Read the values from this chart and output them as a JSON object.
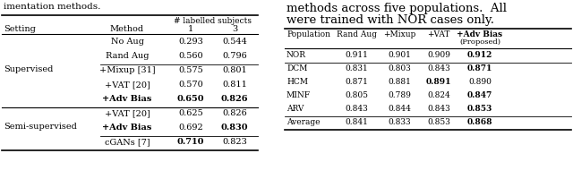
{
  "left_table": {
    "top_text": "imentation methods.",
    "rows": [
      {
        "setting": "",
        "method": "No Aug",
        "bold_method": false,
        "v1": "0.293",
        "v2": "0.544",
        "bold_v1": false,
        "bold_v2": false,
        "hline_before": false,
        "setting_label": ""
      },
      {
        "setting": "",
        "method": "Rand Aug",
        "bold_method": false,
        "v1": "0.560",
        "v2": "0.796",
        "bold_v1": false,
        "bold_v2": false,
        "hline_before": false,
        "setting_label": ""
      },
      {
        "setting": "",
        "method": "+Mixup [31]",
        "bold_method": false,
        "v1": "0.575",
        "v2": "0.801",
        "bold_v1": false,
        "bold_v2": false,
        "hline_before": true,
        "setting_label": "Supervised"
      },
      {
        "setting": "",
        "method": "+VAT [20]",
        "bold_method": false,
        "v1": "0.570",
        "v2": "0.811",
        "bold_v1": false,
        "bold_v2": false,
        "hline_before": false,
        "setting_label": ""
      },
      {
        "setting": "",
        "method": "+Adv Bias",
        "bold_method": true,
        "v1": "0.650",
        "v2": "0.826",
        "bold_v1": true,
        "bold_v2": true,
        "hline_before": false,
        "setting_label": ""
      },
      {
        "setting": "",
        "method": "+VAT [20]",
        "bold_method": false,
        "v1": "0.625",
        "v2": "0.826",
        "bold_v1": false,
        "bold_v2": false,
        "hline_before": true,
        "setting_label": "Semi-supervised"
      },
      {
        "setting": "",
        "method": "+Adv Bias",
        "bold_method": true,
        "v1": "0.692",
        "v2": "0.830",
        "bold_v1": false,
        "bold_v2": true,
        "hline_before": false,
        "setting_label": ""
      },
      {
        "setting": "",
        "method": "cGANs [7]",
        "bold_method": false,
        "v1": "0.710",
        "v2": "0.823",
        "bold_v1": true,
        "bold_v2": false,
        "hline_before": true,
        "setting_label": ""
      }
    ],
    "supervised_rows": [
      0,
      1,
      2,
      3,
      4
    ],
    "semi_rows": [
      5,
      6,
      7
    ]
  },
  "right_table": {
    "top_text1": "methods across five populations.  All",
    "top_text2": "were trained with NOR cases only.",
    "rows": [
      {
        "pop": "NOR",
        "v1": "0.911",
        "v2": "0.901",
        "v3": "0.909",
        "v4": "0.912",
        "bold": [
          false,
          false,
          false,
          true
        ],
        "hline_before": false,
        "hline_after": true
      },
      {
        "pop": "DCM",
        "v1": "0.831",
        "v2": "0.803",
        "v3": "0.843",
        "v4": "0.871",
        "bold": [
          false,
          false,
          false,
          true
        ],
        "hline_before": false,
        "hline_after": false
      },
      {
        "pop": "HCM",
        "v1": "0.871",
        "v2": "0.881",
        "v3": "0.891",
        "v4": "0.890",
        "bold": [
          false,
          false,
          true,
          false
        ],
        "hline_before": false,
        "hline_after": false
      },
      {
        "pop": "MINF",
        "v1": "0.805",
        "v2": "0.789",
        "v3": "0.824",
        "v4": "0.847",
        "bold": [
          false,
          false,
          false,
          true
        ],
        "hline_before": false,
        "hline_after": false
      },
      {
        "pop": "ARV",
        "v1": "0.843",
        "v2": "0.844",
        "v3": "0.843",
        "v4": "0.853",
        "bold": [
          false,
          false,
          false,
          true
        ],
        "hline_before": false,
        "hline_after": true
      },
      {
        "pop": "Average",
        "v1": "0.841",
        "v2": "0.833",
        "v3": "0.853",
        "v4": "0.868",
        "bold": [
          false,
          false,
          false,
          true
        ],
        "hline_before": false,
        "hline_after": false
      }
    ]
  },
  "bg_color": "#ffffff",
  "text_color": "#000000"
}
